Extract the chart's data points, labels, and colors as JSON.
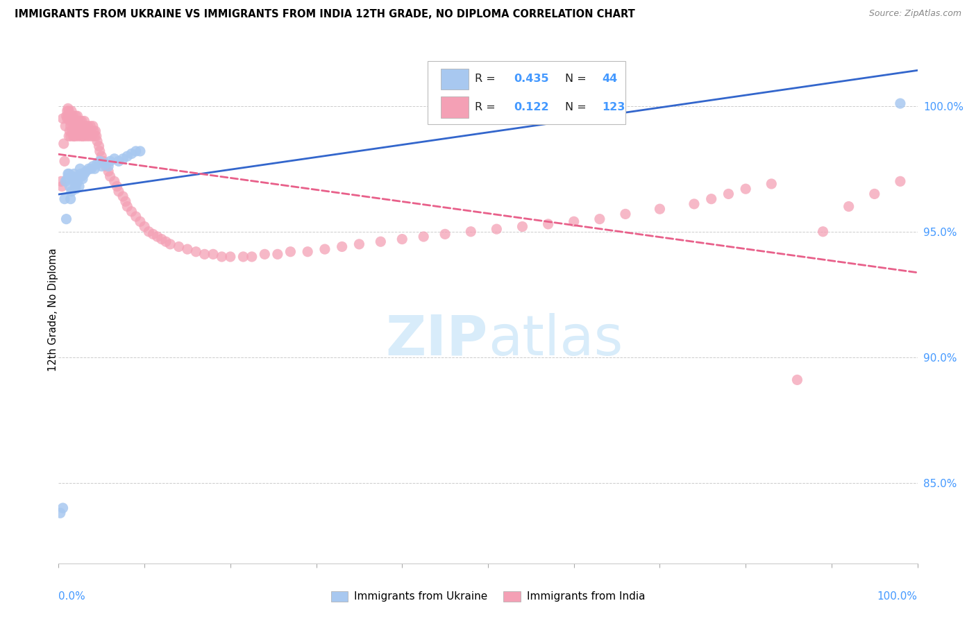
{
  "title": "IMMIGRANTS FROM UKRAINE VS IMMIGRANTS FROM INDIA 12TH GRADE, NO DIPLOMA CORRELATION CHART",
  "source": "Source: ZipAtlas.com",
  "ylabel": "12th Grade, No Diploma",
  "legend_ukraine": "Immigrants from Ukraine",
  "legend_india": "Immigrants from India",
  "R_ukraine": 0.435,
  "N_ukraine": 44,
  "R_india": 0.122,
  "N_india": 123,
  "color_ukraine": "#A8C8F0",
  "color_india": "#F4A0B5",
  "color_blue_text": "#4499FF",
  "color_trendline_ukraine": "#3366CC",
  "color_trendline_india": "#E8608A",
  "watermark_color": "#D8ECFA",
  "ylim_low": 0.818,
  "ylim_high": 1.02,
  "yticks": [
    1.0,
    0.95,
    0.9,
    0.85
  ],
  "ytick_labels": [
    "100.0%",
    "95.0%",
    "90.0%",
    "85.0%"
  ],
  "ukraine_x": [
    0.002,
    0.005,
    0.007,
    0.008,
    0.009,
    0.01,
    0.011,
    0.012,
    0.013,
    0.014,
    0.015,
    0.016,
    0.017,
    0.018,
    0.019,
    0.02,
    0.021,
    0.022,
    0.023,
    0.024,
    0.025,
    0.026,
    0.027,
    0.028,
    0.03,
    0.032,
    0.035,
    0.038,
    0.04,
    0.042,
    0.045,
    0.048,
    0.05,
    0.055,
    0.058,
    0.06,
    0.065,
    0.07,
    0.075,
    0.08,
    0.085,
    0.09,
    0.095,
    0.98
  ],
  "ukraine_y": [
    0.838,
    0.84,
    0.963,
    0.97,
    0.955,
    0.971,
    0.973,
    0.973,
    0.968,
    0.963,
    0.966,
    0.972,
    0.971,
    0.973,
    0.969,
    0.967,
    0.969,
    0.97,
    0.972,
    0.968,
    0.975,
    0.973,
    0.972,
    0.971,
    0.973,
    0.974,
    0.975,
    0.975,
    0.976,
    0.975,
    0.977,
    0.978,
    0.976,
    0.977,
    0.976,
    0.978,
    0.979,
    0.978,
    0.979,
    0.98,
    0.981,
    0.982,
    0.982,
    1.001
  ],
  "india_x": [
    0.003,
    0.004,
    0.005,
    0.006,
    0.007,
    0.008,
    0.009,
    0.01,
    0.01,
    0.011,
    0.011,
    0.012,
    0.012,
    0.013,
    0.013,
    0.014,
    0.014,
    0.015,
    0.015,
    0.016,
    0.016,
    0.017,
    0.017,
    0.018,
    0.018,
    0.019,
    0.019,
    0.02,
    0.02,
    0.021,
    0.021,
    0.022,
    0.022,
    0.023,
    0.023,
    0.024,
    0.025,
    0.025,
    0.026,
    0.026,
    0.027,
    0.027,
    0.028,
    0.028,
    0.029,
    0.03,
    0.03,
    0.031,
    0.032,
    0.033,
    0.034,
    0.035,
    0.036,
    0.037,
    0.038,
    0.039,
    0.04,
    0.041,
    0.042,
    0.043,
    0.044,
    0.045,
    0.047,
    0.048,
    0.05,
    0.052,
    0.055,
    0.058,
    0.06,
    0.065,
    0.068,
    0.07,
    0.075,
    0.078,
    0.08,
    0.085,
    0.09,
    0.095,
    0.1,
    0.105,
    0.11,
    0.115,
    0.12,
    0.125,
    0.13,
    0.14,
    0.15,
    0.16,
    0.17,
    0.18,
    0.19,
    0.2,
    0.215,
    0.225,
    0.24,
    0.255,
    0.27,
    0.29,
    0.31,
    0.33,
    0.35,
    0.375,
    0.4,
    0.425,
    0.45,
    0.48,
    0.51,
    0.54,
    0.57,
    0.6,
    0.63,
    0.66,
    0.7,
    0.74,
    0.76,
    0.78,
    0.8,
    0.83,
    0.86,
    0.89,
    0.92,
    0.95,
    0.98
  ],
  "india_y": [
    0.97,
    0.968,
    0.995,
    0.985,
    0.978,
    0.992,
    0.996,
    0.998,
    0.995,
    0.999,
    0.996,
    0.998,
    0.988,
    0.994,
    0.99,
    0.992,
    0.988,
    0.996,
    0.998,
    0.99,
    0.994,
    0.996,
    0.988,
    0.992,
    0.988,
    0.994,
    0.99,
    0.996,
    0.988,
    0.992,
    0.99,
    0.994,
    0.996,
    0.99,
    0.988,
    0.992,
    0.994,
    0.99,
    0.992,
    0.988,
    0.99,
    0.994,
    0.988,
    0.992,
    0.99,
    0.994,
    0.988,
    0.992,
    0.99,
    0.988,
    0.992,
    0.99,
    0.988,
    0.992,
    0.99,
    0.988,
    0.992,
    0.99,
    0.988,
    0.99,
    0.988,
    0.986,
    0.984,
    0.982,
    0.98,
    0.978,
    0.976,
    0.974,
    0.972,
    0.97,
    0.968,
    0.966,
    0.964,
    0.962,
    0.96,
    0.958,
    0.956,
    0.954,
    0.952,
    0.95,
    0.949,
    0.948,
    0.947,
    0.946,
    0.945,
    0.944,
    0.943,
    0.942,
    0.941,
    0.941,
    0.94,
    0.94,
    0.94,
    0.94,
    0.941,
    0.941,
    0.942,
    0.942,
    0.943,
    0.944,
    0.945,
    0.946,
    0.947,
    0.948,
    0.949,
    0.95,
    0.951,
    0.952,
    0.953,
    0.954,
    0.955,
    0.957,
    0.959,
    0.961,
    0.963,
    0.965,
    0.967,
    0.969,
    0.891,
    0.95,
    0.96,
    0.965,
    0.97
  ]
}
